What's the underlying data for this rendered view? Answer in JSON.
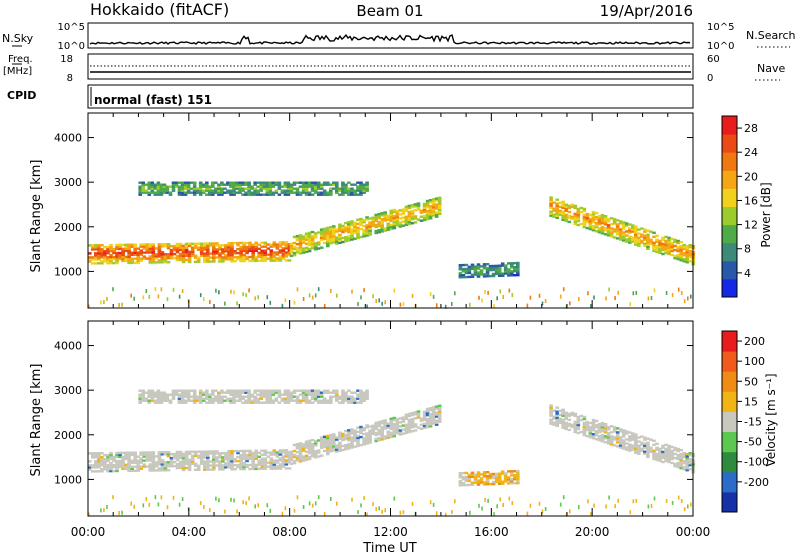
{
  "header": {
    "station": "Hokkaido (fitACF)",
    "beam": "Beam 01",
    "date": "19/Apr/2016"
  },
  "strip": {
    "nsky_label": "N.Sky",
    "nsky_ticks": [
      "10^5",
      "10^0"
    ],
    "nsearch_label": "N.Search",
    "nsearch_ticks": [
      "10^5",
      "10^0"
    ],
    "freq_label": "Freq.",
    "freq_unit": "[MHz]",
    "freq_ticks": [
      "18",
      "8"
    ],
    "nave_label": "Nave",
    "nave_ticks": [
      "60",
      "0"
    ],
    "cpid_label": "CPID",
    "cpid_value": "normal (fast) 151"
  },
  "chart_data": [
    {
      "type": "heatmap",
      "name": "power",
      "ylabel": "Slant Range [km]",
      "xlabel": "Time UT",
      "xlim_hours": [
        0,
        24
      ],
      "ylim": [
        180,
        4550
      ],
      "y_ticks": [
        "1000",
        "2000",
        "3000",
        "4000"
      ],
      "colorbar": {
        "label": "Power [dB]",
        "ticks": [
          "4",
          "8",
          "12",
          "16",
          "20",
          "24",
          "28"
        ],
        "colors": [
          "#1428e6",
          "#2a58a8",
          "#3c8a78",
          "#4faa48",
          "#9ccc2c",
          "#f0d21e",
          "#f4a614",
          "#f07810",
          "#ec4a14",
          "#e81c1c"
        ],
        "range": [
          0,
          30
        ]
      },
      "echo_bands": [
        {
          "start": 0,
          "end": 8,
          "center_start": 1380,
          "center_end": 1450,
          "value": 27
        },
        {
          "start": 8,
          "end": 13.9,
          "center_start": 1550,
          "center_end": 2450,
          "value": 20
        },
        {
          "start": 14.7,
          "end": 17,
          "center_start": 1000,
          "center_end": 1050,
          "value": 10
        },
        {
          "start": 18.3,
          "end": 24,
          "center_start": 2450,
          "center_end": 1350,
          "value": 22
        },
        {
          "start": 2,
          "end": 11,
          "center_start": 2850,
          "center_end": 2850,
          "value": 12
        }
      ]
    },
    {
      "type": "heatmap",
      "name": "velocity",
      "ylabel": "Slant Range [km]",
      "xlabel": "Time UT",
      "xlim_hours": [
        0,
        24
      ],
      "ylim": [
        180,
        4550
      ],
      "y_ticks": [
        "1000",
        "2000",
        "3000",
        "4000"
      ],
      "colorbar": {
        "label": "Velocity [m s⁻¹]",
        "ticks": [
          "200",
          "100",
          "50",
          "15",
          "-15",
          "-50",
          "-100",
          "-200"
        ],
        "colors": [
          "#1630a8",
          "#2a6cc8",
          "#2e8a3c",
          "#5cc850",
          "#c8c8be",
          "#f0b414",
          "#f08c14",
          "#f05a1a",
          "#e81c1c"
        ],
        "range": [
          -250,
          250
        ]
      }
    }
  ],
  "x_ticks": [
    "00:00",
    "04:00",
    "08:00",
    "12:00",
    "16:00",
    "20:00",
    "00:00"
  ],
  "x_label": "Time UT"
}
